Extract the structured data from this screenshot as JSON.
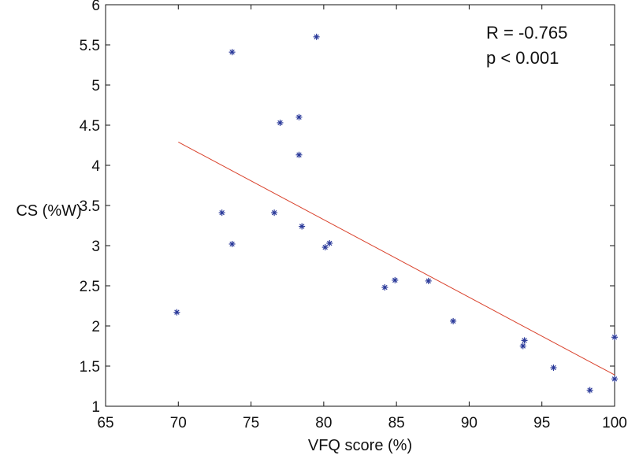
{
  "chart_data": {
    "type": "scatter",
    "title": "",
    "xlabel": "VFQ score (%)",
    "ylabel": "CS (%W)",
    "xlim": [
      65,
      100
    ],
    "ylim": [
      1,
      6
    ],
    "xticks": [
      65,
      70,
      75,
      80,
      85,
      90,
      95,
      100
    ],
    "yticks": [
      1,
      1.5,
      2,
      2.5,
      3,
      3.5,
      4,
      4.5,
      5,
      5.5,
      6
    ],
    "xtick_labels": [
      "65",
      "70",
      "75",
      "80",
      "85",
      "90",
      "95",
      "100"
    ],
    "ytick_labels": [
      "1",
      "1.5",
      "2",
      "2.5",
      "3",
      "3.5",
      "4",
      "4.5",
      "5",
      "5.5",
      "6"
    ],
    "grid": false,
    "marker": "*",
    "point_color": "#2b3a9a",
    "line_color": "#d9412b",
    "series": [
      {
        "name": "data",
        "points": [
          {
            "x": 69.9,
            "y": 2.17
          },
          {
            "x": 73.0,
            "y": 3.41
          },
          {
            "x": 73.7,
            "y": 3.02
          },
          {
            "x": 73.7,
            "y": 5.41
          },
          {
            "x": 76.6,
            "y": 3.41
          },
          {
            "x": 77.0,
            "y": 4.53
          },
          {
            "x": 78.3,
            "y": 4.6
          },
          {
            "x": 78.3,
            "y": 4.13
          },
          {
            "x": 78.5,
            "y": 3.24
          },
          {
            "x": 79.5,
            "y": 5.6
          },
          {
            "x": 80.1,
            "y": 2.98
          },
          {
            "x": 80.4,
            "y": 3.03
          },
          {
            "x": 84.2,
            "y": 2.48
          },
          {
            "x": 84.9,
            "y": 2.57
          },
          {
            "x": 87.2,
            "y": 2.56
          },
          {
            "x": 88.9,
            "y": 2.06
          },
          {
            "x": 93.7,
            "y": 1.75
          },
          {
            "x": 93.8,
            "y": 1.82
          },
          {
            "x": 95.8,
            "y": 1.48
          },
          {
            "x": 98.3,
            "y": 1.2
          },
          {
            "x": 100.0,
            "y": 1.86
          },
          {
            "x": 100.0,
            "y": 1.34
          }
        ]
      }
    ],
    "fit_line": {
      "x": [
        70,
        100
      ],
      "y": [
        4.29,
        1.39
      ]
    },
    "annotations": [
      "R = -0.765",
      "p < 0.001"
    ]
  }
}
